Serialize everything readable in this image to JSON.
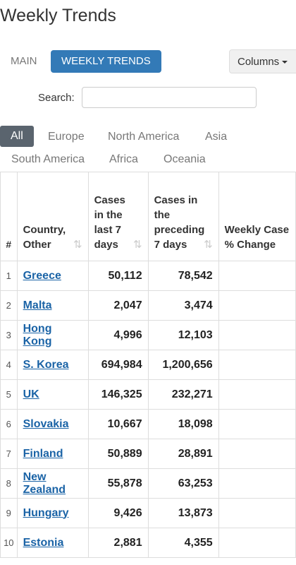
{
  "page": {
    "title": "Weekly Trends"
  },
  "tabs": {
    "main": "MAIN",
    "weekly": "WEEKLY TRENDS",
    "columns": "Columns"
  },
  "search": {
    "label": "Search:",
    "placeholder": "",
    "value": ""
  },
  "regions": [
    "All",
    "Europe",
    "North America",
    "Asia",
    "South America",
    "Africa",
    "Oceania"
  ],
  "table": {
    "headers": {
      "num": "#",
      "country": [
        "Country,",
        "Other"
      ],
      "cases": [
        "Cases",
        "in the",
        "last 7",
        "days"
      ],
      "prev": [
        "Cases in",
        "the",
        "preceding",
        "7 days"
      ],
      "weekly": [
        "Weekly Case",
        "% Change"
      ]
    },
    "sort_icon": "sort-icon",
    "rows": [
      {
        "idx": "1",
        "country": "Greece",
        "cases7": "50,112",
        "prev7": "78,542"
      },
      {
        "idx": "2",
        "country": "Malta",
        "cases7": "2,047",
        "prev7": "3,474"
      },
      {
        "idx": "3",
        "country": "Hong Kong",
        "cases7": "4,996",
        "prev7": "12,103"
      },
      {
        "idx": "4",
        "country": "S. Korea",
        "cases7": "694,984",
        "prev7": "1,200,656"
      },
      {
        "idx": "5",
        "country": "UK",
        "cases7": "146,325",
        "prev7": "232,271"
      },
      {
        "idx": "6",
        "country": "Slovakia",
        "cases7": "10,667",
        "prev7": "18,098"
      },
      {
        "idx": "7",
        "country": "Finland",
        "cases7": "50,889",
        "prev7": "28,891"
      },
      {
        "idx": "8",
        "country": "New Zealand",
        "cases7": "55,878",
        "prev7": "63,253"
      },
      {
        "idx": "9",
        "country": "Hungary",
        "cases7": "9,426",
        "prev7": "13,873"
      },
      {
        "idx": "10",
        "country": "Estonia",
        "cases7": "2,881",
        "prev7": "4,355"
      }
    ]
  },
  "colors": {
    "accent": "#337ab7",
    "active_filter": "#5a646e",
    "link": "#1a63a6"
  }
}
